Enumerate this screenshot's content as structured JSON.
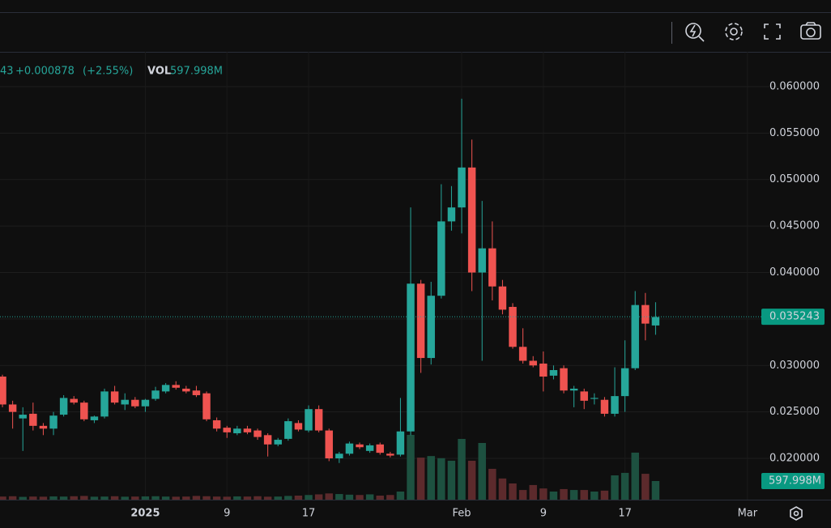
{
  "chart_data": {
    "type": "candlestick",
    "legend": {
      "close_fragment": "43",
      "change": "+0.000878",
      "change_pct": "(+2.55%)",
      "vol_label": "VOL",
      "vol_value": "597.998M"
    },
    "x": [
      0,
      1,
      2,
      3,
      4,
      5,
      6,
      7,
      8,
      9,
      10,
      11,
      12,
      13,
      14,
      15,
      16,
      17,
      18,
      19,
      20,
      21,
      22,
      23,
      24,
      25,
      26,
      27,
      28,
      29,
      30,
      31,
      32,
      33,
      34,
      35,
      36,
      37,
      38,
      39,
      40,
      41,
      42,
      43,
      44,
      45,
      46,
      47,
      48,
      49,
      50,
      51,
      52,
      53,
      54,
      55,
      56,
      57,
      58,
      59,
      60,
      61,
      62,
      63,
      64
    ],
    "open": [
      0.0288,
      0.0258,
      0.0243,
      0.0248,
      0.0235,
      0.0232,
      0.0247,
      0.0264,
      0.026,
      0.0241,
      0.0245,
      0.0272,
      0.0258,
      0.0263,
      0.0256,
      0.0264,
      0.0272,
      0.0279,
      0.0275,
      0.0273,
      0.027,
      0.0241,
      0.0233,
      0.0227,
      0.0232,
      0.023,
      0.0225,
      0.0215,
      0.0221,
      0.0238,
      0.023,
      0.0253,
      0.023,
      0.02,
      0.0205,
      0.0215,
      0.0208,
      0.0215,
      0.0205,
      0.0204,
      0.0229,
      0.0388,
      0.0308,
      0.0375,
      0.0455,
      0.047,
      0.0513,
      0.04,
      0.0426,
      0.0385,
      0.0363,
      0.032,
      0.0305,
      0.0302,
      0.0289,
      0.0297,
      0.0273,
      0.0272,
      0.0264,
      0.0263,
      0.0248,
      0.0267,
      0.0297,
      0.0365,
      0.0343
    ],
    "high": [
      0.029,
      0.0262,
      0.0255,
      0.026,
      0.0238,
      0.025,
      0.0268,
      0.0267,
      0.0262,
      0.0246,
      0.0275,
      0.0278,
      0.027,
      0.0266,
      0.0264,
      0.0277,
      0.0281,
      0.0283,
      0.0278,
      0.0278,
      0.0272,
      0.0244,
      0.0235,
      0.0235,
      0.0235,
      0.0232,
      0.0227,
      0.0222,
      0.0243,
      0.0241,
      0.0257,
      0.0257,
      0.0232,
      0.0207,
      0.0218,
      0.0217,
      0.0216,
      0.0217,
      0.0207,
      0.0265,
      0.047,
      0.0392,
      0.039,
      0.0495,
      0.0493,
      0.0587,
      0.0543,
      0.0477,
      0.0455,
      0.0392,
      0.0367,
      0.034,
      0.031,
      0.0315,
      0.03,
      0.03,
      0.0278,
      0.0275,
      0.027,
      0.0266,
      0.0298,
      0.0327,
      0.038,
      0.0378,
      0.0368
    ],
    "low": [
      0.0255,
      0.0232,
      0.0208,
      0.023,
      0.0225,
      0.0225,
      0.0245,
      0.0258,
      0.024,
      0.0238,
      0.0243,
      0.0258,
      0.0252,
      0.0254,
      0.025,
      0.0262,
      0.027,
      0.0274,
      0.027,
      0.0266,
      0.024,
      0.0229,
      0.0222,
      0.0225,
      0.0226,
      0.022,
      0.0202,
      0.0213,
      0.0219,
      0.0229,
      0.0228,
      0.0228,
      0.0197,
      0.0195,
      0.0203,
      0.021,
      0.0206,
      0.0204,
      0.0201,
      0.0202,
      0.0225,
      0.0292,
      0.0301,
      0.0372,
      0.0445,
      0.0442,
      0.038,
      0.0305,
      0.037,
      0.0355,
      0.0318,
      0.0302,
      0.0298,
      0.0272,
      0.0285,
      0.027,
      0.0255,
      0.0253,
      0.0258,
      0.0245,
      0.0245,
      0.025,
      0.0295,
      0.0327,
      0.0333
    ],
    "close": [
      0.0258,
      0.025,
      0.0247,
      0.0235,
      0.0232,
      0.0246,
      0.0265,
      0.026,
      0.0242,
      0.0245,
      0.0272,
      0.026,
      0.0263,
      0.0256,
      0.0263,
      0.0273,
      0.0279,
      0.0276,
      0.0272,
      0.0268,
      0.0242,
      0.0232,
      0.0228,
      0.0232,
      0.0228,
      0.0223,
      0.0215,
      0.022,
      0.024,
      0.0231,
      0.0253,
      0.023,
      0.02,
      0.0205,
      0.0216,
      0.0212,
      0.0214,
      0.0206,
      0.0203,
      0.0229,
      0.0388,
      0.0308,
      0.0375,
      0.0455,
      0.047,
      0.0513,
      0.04,
      0.0426,
      0.0385,
      0.036,
      0.032,
      0.0305,
      0.03,
      0.0288,
      0.0295,
      0.0273,
      0.0275,
      0.0262,
      0.0265,
      0.0248,
      0.0267,
      0.0297,
      0.0365,
      0.0345,
      0.0352
    ],
    "volume": [
      100,
      110,
      90,
      100,
      95,
      105,
      100,
      110,
      120,
      95,
      100,
      110,
      95,
      100,
      105,
      110,
      100,
      95,
      100,
      120,
      110,
      100,
      95,
      105,
      100,
      110,
      95,
      100,
      120,
      130,
      150,
      170,
      200,
      180,
      160,
      150,
      170,
      130,
      150,
      260,
      2080,
      1350,
      1400,
      1330,
      1250,
      1950,
      1250,
      1820,
      990,
      680,
      520,
      310,
      470,
      360,
      260,
      340,
      310,
      310,
      260,
      290,
      780,
      860,
      1510,
      830,
      597.998
    ],
    "last_price": {
      "value": 0.035243,
      "label": "0.035243"
    },
    "volume_label": {
      "value": 597.998,
      "label": "597.998M"
    },
    "xlim": [
      -0.24,
      75.95
    ],
    "ylim": [
      0.015556,
      0.063747
    ],
    "xticks": [
      {
        "value": 14,
        "label": "2025"
      },
      {
        "value": 22,
        "label": "9"
      },
      {
        "value": 30,
        "label": "17"
      },
      {
        "value": 45,
        "label": "Feb"
      },
      {
        "value": 53,
        "label": "9"
      },
      {
        "value": 61,
        "label": "17"
      },
      {
        "value": 73,
        "label": "Mar"
      }
    ],
    "yticks": [
      {
        "value": 0.06,
        "label": "0.060000"
      },
      {
        "value": 0.055,
        "label": "0.055000"
      },
      {
        "value": 0.05,
        "label": "0.050000"
      },
      {
        "value": 0.045,
        "label": "0.045000"
      },
      {
        "value": 0.04,
        "label": "0.040000"
      },
      {
        "value": 0.035,
        "label": "0.035000"
      },
      {
        "value": 0.03,
        "label": "0.030000"
      },
      {
        "value": 0.025,
        "label": "0.025000"
      },
      {
        "value": 0.02,
        "label": "0.020000"
      }
    ],
    "up_color": "#26a69a",
    "down_color": "#ef5350",
    "grid": true
  }
}
